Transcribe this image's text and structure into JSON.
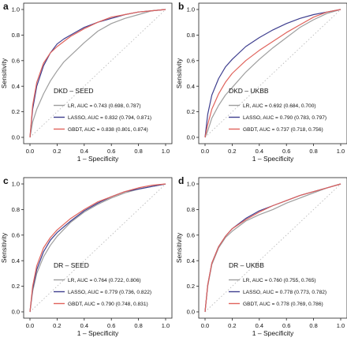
{
  "chart_data": [
    {
      "type": "line",
      "panel_label": "a",
      "title": "DKD – SEED",
      "xlabel": "1 – Specificity",
      "ylabel": "Sensitivity",
      "xlim": [
        0,
        1
      ],
      "ylim": [
        0,
        1
      ],
      "ticks": [
        "0.0",
        "0.2",
        "0.4",
        "0.6",
        "0.8",
        "1.0"
      ],
      "grid": false,
      "legend_position": "bottom-right",
      "series": [
        {
          "name": "LR, AUC = 0.743 (0.698, 0.787)",
          "color": "#9e9e9e",
          "x": [
            0,
            0.02,
            0.05,
            0.1,
            0.15,
            0.2,
            0.25,
            0.3,
            0.35,
            0.4,
            0.5,
            0.6,
            0.7,
            0.8,
            0.9,
            1.0
          ],
          "y": [
            0,
            0.12,
            0.22,
            0.34,
            0.44,
            0.52,
            0.59,
            0.64,
            0.69,
            0.74,
            0.83,
            0.89,
            0.93,
            0.96,
            0.99,
            1.0
          ]
        },
        {
          "name": "LASSO, AUC = 0.832 (0.794, 0.871)",
          "color": "#3f3f8f",
          "x": [
            0,
            0.02,
            0.05,
            0.1,
            0.15,
            0.2,
            0.25,
            0.3,
            0.35,
            0.4,
            0.5,
            0.6,
            0.7,
            0.8,
            0.9,
            1.0
          ],
          "y": [
            0,
            0.22,
            0.4,
            0.56,
            0.66,
            0.73,
            0.77,
            0.8,
            0.83,
            0.86,
            0.9,
            0.93,
            0.96,
            0.98,
            0.99,
            1.0
          ]
        },
        {
          "name": "GBDT, AUC = 0.838 (0.801, 0.874)",
          "color": "#e0635c",
          "x": [
            0,
            0.02,
            0.05,
            0.1,
            0.15,
            0.2,
            0.25,
            0.3,
            0.35,
            0.4,
            0.5,
            0.6,
            0.7,
            0.8,
            0.9,
            1.0
          ],
          "y": [
            0,
            0.25,
            0.43,
            0.58,
            0.66,
            0.71,
            0.75,
            0.79,
            0.82,
            0.85,
            0.9,
            0.94,
            0.96,
            0.98,
            0.99,
            1.0
          ]
        }
      ]
    },
    {
      "type": "line",
      "panel_label": "b",
      "title": "DKD – UKBB",
      "xlabel": "1 – Specificity",
      "ylabel": "Sensitivity",
      "xlim": [
        0,
        1
      ],
      "ylim": [
        0,
        1
      ],
      "ticks": [
        "0.0",
        "0.2",
        "0.4",
        "0.6",
        "0.8",
        "1.0"
      ],
      "grid": false,
      "legend_position": "bottom-right",
      "series": [
        {
          "name": "LR, AUC = 0.692 (0.684, 0.700)",
          "color": "#9e9e9e",
          "x": [
            0,
            0.02,
            0.05,
            0.1,
            0.15,
            0.2,
            0.3,
            0.4,
            0.5,
            0.6,
            0.7,
            0.8,
            0.9,
            1.0
          ],
          "y": [
            0,
            0.05,
            0.15,
            0.25,
            0.33,
            0.39,
            0.51,
            0.61,
            0.7,
            0.78,
            0.86,
            0.92,
            0.97,
            1.0
          ]
        },
        {
          "name": "LASSO, AUC = 0.790 (0.783, 0.797)",
          "color": "#3f3f8f",
          "x": [
            0,
            0.02,
            0.05,
            0.1,
            0.15,
            0.2,
            0.3,
            0.4,
            0.5,
            0.6,
            0.7,
            0.8,
            0.9,
            1.0
          ],
          "y": [
            0,
            0.18,
            0.33,
            0.46,
            0.55,
            0.61,
            0.71,
            0.78,
            0.84,
            0.89,
            0.93,
            0.96,
            0.98,
            1.0
          ]
        },
        {
          "name": "GBDT, AUC = 0.737 (0.718, 0.756)",
          "color": "#e0635c",
          "x": [
            0,
            0.02,
            0.05,
            0.1,
            0.15,
            0.2,
            0.3,
            0.4,
            0.5,
            0.6,
            0.7,
            0.8,
            0.9,
            1.0
          ],
          "y": [
            0,
            0.1,
            0.22,
            0.34,
            0.43,
            0.5,
            0.6,
            0.68,
            0.75,
            0.82,
            0.88,
            0.94,
            0.98,
            1.0
          ]
        }
      ]
    },
    {
      "type": "line",
      "panel_label": "c",
      "title": "DR – SEED",
      "xlabel": "1 – Specificity",
      "ylabel": "Sensitivity",
      "xlim": [
        0,
        1
      ],
      "ylim": [
        0,
        1
      ],
      "ticks": [
        "0.0",
        "0.2",
        "0.4",
        "0.6",
        "0.8",
        "1.0"
      ],
      "grid": false,
      "legend_position": "bottom-right",
      "series": [
        {
          "name": "LR, AUC = 0.764 (0.722, 0.806)",
          "color": "#9e9e9e",
          "x": [
            0,
            0.02,
            0.05,
            0.1,
            0.15,
            0.2,
            0.3,
            0.4,
            0.5,
            0.6,
            0.7,
            0.8,
            0.9,
            1.0
          ],
          "y": [
            0,
            0.16,
            0.3,
            0.43,
            0.52,
            0.59,
            0.7,
            0.78,
            0.84,
            0.89,
            0.93,
            0.96,
            0.98,
            1.0
          ]
        },
        {
          "name": "LASSO, AUC = 0.779 (0.736, 0.822)",
          "color": "#3f3f8f",
          "x": [
            0,
            0.02,
            0.05,
            0.1,
            0.15,
            0.2,
            0.3,
            0.4,
            0.5,
            0.6,
            0.7,
            0.8,
            0.9,
            1.0
          ],
          "y": [
            0,
            0.18,
            0.33,
            0.47,
            0.56,
            0.62,
            0.71,
            0.79,
            0.85,
            0.9,
            0.94,
            0.96,
            0.98,
            1.0
          ]
        },
        {
          "name": "GBDT, AUC = 0.790 (0.748, 0.831)",
          "color": "#e0635c",
          "x": [
            0,
            0.02,
            0.05,
            0.1,
            0.15,
            0.2,
            0.3,
            0.4,
            0.5,
            0.6,
            0.7,
            0.8,
            0.9,
            1.0
          ],
          "y": [
            0,
            0.2,
            0.36,
            0.5,
            0.58,
            0.64,
            0.73,
            0.8,
            0.86,
            0.9,
            0.94,
            0.97,
            0.99,
            1.0
          ]
        }
      ]
    },
    {
      "type": "line",
      "panel_label": "d",
      "title": "DR – UKBB",
      "xlabel": "1 – Specificity",
      "ylabel": "Sensitivity",
      "xlim": [
        0,
        1
      ],
      "ylim": [
        0,
        1
      ],
      "ticks": [
        "0.0",
        "0.2",
        "0.4",
        "0.6",
        "0.8",
        "1.0"
      ],
      "grid": false,
      "legend_position": "bottom-right",
      "series": [
        {
          "name": "LR, AUC = 0.760 (0.755, 0.765)",
          "color": "#9e9e9e",
          "x": [
            0,
            0.02,
            0.05,
            0.1,
            0.15,
            0.2,
            0.3,
            0.4,
            0.5,
            0.6,
            0.7,
            0.8,
            0.9,
            1.0
          ],
          "y": [
            0,
            0.2,
            0.37,
            0.5,
            0.58,
            0.63,
            0.71,
            0.76,
            0.8,
            0.85,
            0.89,
            0.93,
            0.97,
            1.0
          ]
        },
        {
          "name": "LASSO, AUC = 0.778 (0.773, 0.782)",
          "color": "#3f3f8f",
          "x": [
            0,
            0.02,
            0.05,
            0.1,
            0.15,
            0.2,
            0.3,
            0.4,
            0.5,
            0.6,
            0.7,
            0.8,
            0.9,
            1.0
          ],
          "y": [
            0,
            0.21,
            0.38,
            0.51,
            0.59,
            0.65,
            0.73,
            0.79,
            0.83,
            0.87,
            0.91,
            0.94,
            0.97,
            1.0
          ]
        },
        {
          "name": "GBDT, AUC = 0.778 (0.769, 0.786)",
          "color": "#e0635c",
          "x": [
            0,
            0.02,
            0.05,
            0.1,
            0.15,
            0.2,
            0.3,
            0.4,
            0.5,
            0.6,
            0.7,
            0.8,
            0.9,
            1.0
          ],
          "y": [
            0,
            0.21,
            0.38,
            0.51,
            0.59,
            0.65,
            0.72,
            0.78,
            0.83,
            0.87,
            0.91,
            0.94,
            0.97,
            1.0
          ]
        }
      ]
    }
  ],
  "style": {
    "axis_color": "#222222",
    "text_color": "#111111",
    "diagonal_color": "#bbbbbb"
  }
}
